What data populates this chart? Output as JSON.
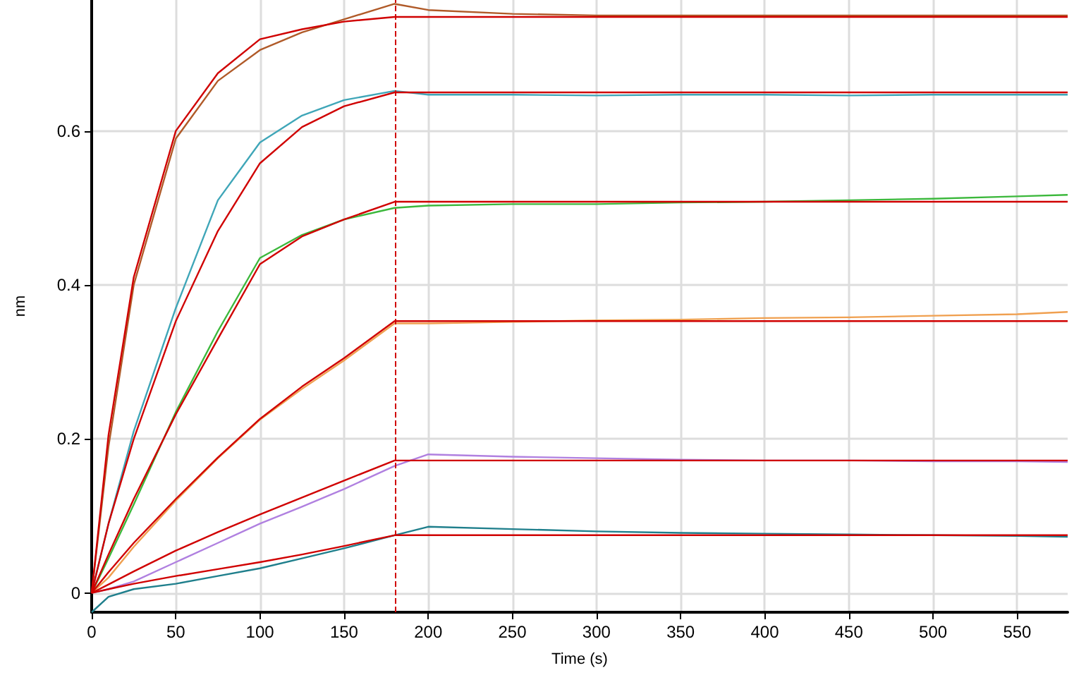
{
  "chart_data": {
    "type": "line",
    "xlabel": "Time (s)",
    "ylabel": "nm",
    "x": [
      0,
      10,
      25,
      50,
      75,
      100,
      125,
      150,
      180,
      200,
      250,
      300,
      350,
      400,
      450,
      500,
      550,
      580
    ],
    "series": [
      {
        "color": "#b05a28",
        "values": [
          0,
          0.19,
          0.4,
          0.59,
          0.665,
          0.705,
          0.728,
          0.745,
          0.765,
          0.757,
          0.752,
          0.75,
          0.75,
          0.75,
          0.75,
          0.75,
          0.75,
          0.75
        ]
      },
      {
        "color": "#3fa6b8",
        "values": [
          0,
          0.09,
          0.21,
          0.37,
          0.51,
          0.585,
          0.62,
          0.64,
          0.652,
          0.647,
          0.647,
          0.646,
          0.647,
          0.647,
          0.646,
          0.647,
          0.647,
          0.647
        ]
      },
      {
        "color": "#3cb83c",
        "values": [
          0,
          0.045,
          0.115,
          0.235,
          0.34,
          0.435,
          0.465,
          0.485,
          0.5,
          0.503,
          0.505,
          0.505,
          0.507,
          0.508,
          0.51,
          0.512,
          0.515,
          0.517
        ]
      },
      {
        "color": "#f0a050",
        "values": [
          0,
          0.02,
          0.06,
          0.12,
          0.175,
          0.225,
          0.265,
          0.302,
          0.35,
          0.35,
          0.352,
          0.354,
          0.355,
          0.357,
          0.358,
          0.36,
          0.362,
          0.365
        ]
      },
      {
        "color": "#b080e0",
        "values": [
          0,
          0.005,
          0.015,
          0.04,
          0.065,
          0.09,
          0.112,
          0.135,
          0.165,
          0.18,
          0.177,
          0.175,
          0.173,
          0.172,
          0.172,
          0.171,
          0.171,
          0.17
        ]
      },
      {
        "color": "#1f7f8c",
        "values": [
          -0.025,
          -0.005,
          0.005,
          0.012,
          0.022,
          0.032,
          0.045,
          0.058,
          0.075,
          0.086,
          0.083,
          0.08,
          0.078,
          0.077,
          0.076,
          0.075,
          0.074,
          0.073
        ]
      },
      {
        "color": "#d00000",
        "x": [
          0,
          10,
          25,
          50,
          75,
          100,
          125,
          150,
          180,
          580
        ],
        "values": [
          0,
          0.205,
          0.41,
          0.6,
          0.675,
          0.719,
          0.732,
          0.742,
          0.748,
          0.748
        ]
      },
      {
        "color": "#d00000",
        "x": [
          0,
          10,
          25,
          50,
          75,
          100,
          125,
          150,
          180,
          580
        ],
        "values": [
          0,
          0.09,
          0.2,
          0.353,
          0.47,
          0.558,
          0.605,
          0.632,
          0.65,
          0.65
        ]
      },
      {
        "color": "#d00000",
        "x": [
          0,
          10,
          25,
          50,
          75,
          100,
          125,
          150,
          180,
          580
        ],
        "values": [
          0,
          0.05,
          0.122,
          0.232,
          0.33,
          0.427,
          0.463,
          0.485,
          0.508,
          0.508
        ]
      },
      {
        "color": "#d00000",
        "x": [
          0,
          10,
          25,
          50,
          75,
          100,
          125,
          150,
          180,
          580
        ],
        "values": [
          0,
          0.027,
          0.065,
          0.122,
          0.176,
          0.226,
          0.268,
          0.305,
          0.353,
          0.353
        ]
      },
      {
        "color": "#d00000",
        "x": [
          0,
          10,
          25,
          50,
          75,
          100,
          125,
          150,
          180,
          580
        ],
        "values": [
          0,
          0.011,
          0.028,
          0.055,
          0.079,
          0.102,
          0.124,
          0.146,
          0.172,
          0.172
        ]
      },
      {
        "color": "#d00000",
        "x": [
          0,
          10,
          25,
          50,
          75,
          100,
          125,
          150,
          180,
          580
        ],
        "values": [
          0,
          0.005,
          0.012,
          0.022,
          0.031,
          0.04,
          0.05,
          0.061,
          0.075,
          0.075
        ]
      }
    ],
    "xlim": [
      0,
      580
    ],
    "xticks": [
      0,
      50,
      100,
      150,
      200,
      250,
      300,
      350,
      400,
      450,
      500,
      550
    ],
    "ylim": [
      -0.025,
      0.77
    ],
    "yticks": [
      0,
      0.2,
      0.4,
      0.6
    ],
    "ref_lines": [
      {
        "axis": "x",
        "value": 180,
        "color": "#d00000",
        "line_style": "dashed"
      }
    ],
    "grid": true,
    "marker": "none",
    "line_style": "solid"
  }
}
